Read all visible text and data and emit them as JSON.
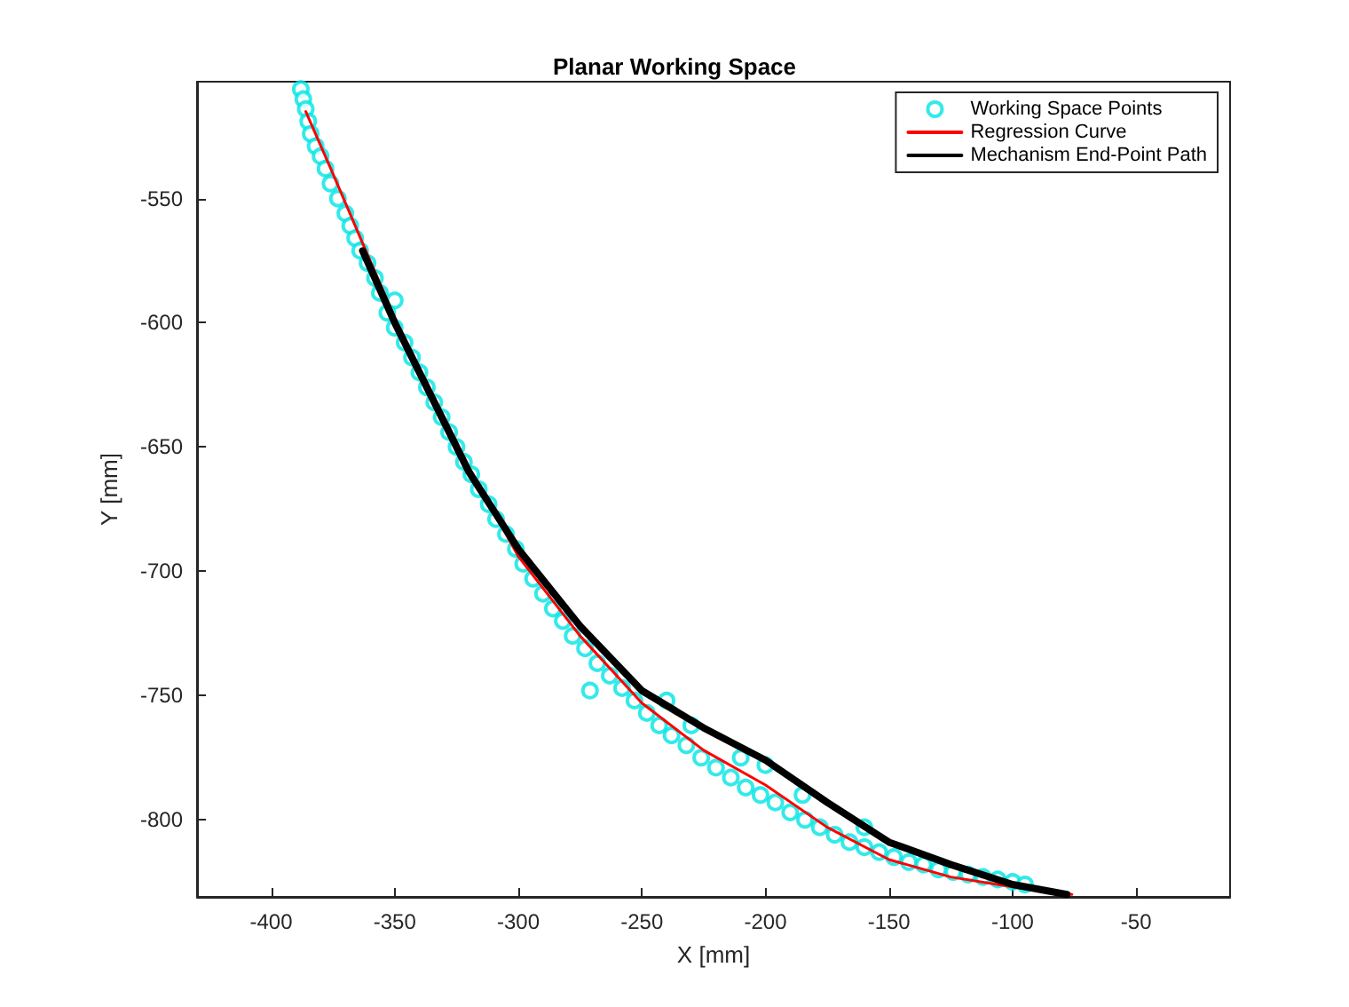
{
  "chart_data": {
    "type": "line",
    "title": "Planar Working Space",
    "xlabel": "X [mm]",
    "ylabel": "Y [mm]",
    "xlim": [
      -430,
      -12
    ],
    "xticks": [
      -400,
      -350,
      -300,
      -250,
      -200,
      -150,
      -100,
      -50
    ],
    "ylim": [
      -831,
      -503
    ],
    "yticks": [
      -550,
      -600,
      -650,
      -700,
      -750,
      -800
    ],
    "grid": false,
    "legend": "top right",
    "series": [
      {
        "name": "Working Space Points",
        "type": "scatter",
        "marker": "circle",
        "color": "#00e5e5",
        "x": [
          -388,
          -387,
          -386,
          -385,
          -384,
          -382,
          -380,
          -378,
          -376,
          -373,
          -370,
          -368,
          -366,
          -364,
          -361,
          -358,
          -356,
          -350,
          -353,
          -350,
          -346,
          -343,
          -340,
          -337,
          -334,
          -331,
          -328,
          -325,
          -322,
          -319,
          -316,
          -312,
          -309,
          -305,
          -301,
          -298,
          -294,
          -290,
          -286,
          -282,
          -278,
          -271,
          -273,
          -268,
          -263,
          -258,
          -253,
          -248,
          -243,
          -238,
          -232,
          -226,
          -220,
          -214,
          -208,
          -202,
          -196,
          -190,
          -184,
          -178,
          -172,
          -166,
          -160,
          -154,
          -148,
          -142,
          -136,
          -130,
          -124,
          -118,
          -112,
          -106,
          -100,
          -95,
          -240,
          -230,
          -210,
          -200,
          -185,
          -160
        ],
        "values": [
          -506,
          -510,
          -514,
          -519,
          -524,
          -529,
          -533,
          -538,
          -544,
          -550,
          -556,
          -561,
          -566,
          -571,
          -576,
          -582,
          -588,
          -591,
          -596,
          -602,
          -608,
          -614,
          -620,
          -626,
          -632,
          -638,
          -644,
          -650,
          -656,
          -661,
          -667,
          -673,
          -679,
          -685,
          -691,
          -697,
          -703,
          -709,
          -715,
          -720,
          -726,
          -748,
          -731,
          -737,
          -742,
          -747,
          -752,
          -757,
          -762,
          -766,
          -770,
          -775,
          -779,
          -783,
          -787,
          -790,
          -793,
          -797,
          -800,
          -803,
          -806,
          -809,
          -811,
          -813,
          -815,
          -817,
          -818,
          -820,
          -821,
          -822,
          -823,
          -824,
          -825,
          -826,
          -752,
          -762,
          -775,
          -778,
          -790,
          -803
        ]
      },
      {
        "name": "Regression Curve",
        "marker": "none",
        "line_style": "solid",
        "color": "#ff0000",
        "x": [
          -386,
          -375,
          -363,
          -350,
          -335,
          -320,
          -300,
          -275,
          -250,
          -225,
          -200,
          -175,
          -150,
          -125,
          -100,
          -76
        ],
        "values": [
          -515,
          -540,
          -568,
          -598,
          -628,
          -658,
          -694,
          -726,
          -753,
          -772,
          -786,
          -803,
          -816,
          -823,
          -827,
          -830
        ]
      },
      {
        "name": "Mechanism End-Point Path",
        "marker": "none",
        "line_style": "solid",
        "color": "#000000",
        "x": [
          -363,
          -350,
          -335,
          -320,
          -300,
          -275,
          -250,
          -225,
          -200,
          -175,
          -150,
          -125,
          -100,
          -78
        ],
        "values": [
          -571,
          -600,
          -630,
          -660,
          -691,
          -722,
          -748,
          -763,
          -776,
          -793,
          -809,
          -818,
          -826,
          -830
        ]
      }
    ]
  }
}
